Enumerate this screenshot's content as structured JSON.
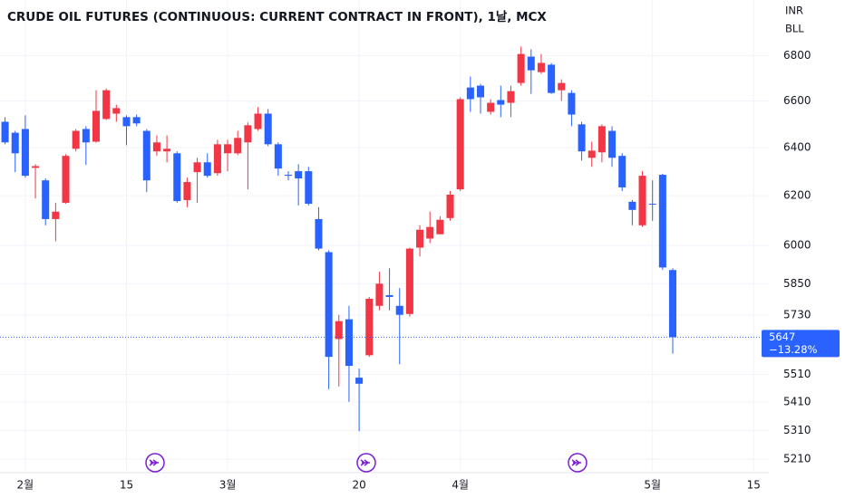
{
  "chart_data": {
    "type": "candlestick",
    "title": "CRUDE OIL FUTURES (CONTINUOUS: CURRENT CONTRACT IN FRONT), 1날, MCX",
    "currency": "INR",
    "unit": "BLL",
    "up_color": "#f23645",
    "down_color": "#2962ff",
    "log_scale": true,
    "grid": true,
    "categories": [
      null,
      null,
      "2월",
      null,
      null,
      null,
      null,
      null,
      null,
      null,
      null,
      null,
      "15",
      null,
      null,
      null,
      null,
      null,
      null,
      null,
      null,
      null,
      "3월",
      null,
      null,
      null,
      null,
      null,
      null,
      null,
      null,
      null,
      null,
      null,
      null,
      "20",
      null,
      null,
      null,
      null,
      null,
      null,
      null,
      null,
      null,
      "4월",
      null,
      null,
      null,
      null,
      null,
      null,
      null,
      null,
      null,
      null,
      null,
      null,
      null,
      null,
      null,
      null,
      null,
      null,
      "5월",
      null,
      null,
      null,
      null,
      null,
      null,
      null,
      null,
      null,
      "15",
      null
    ],
    "open": [
      6510,
      6463,
      6479,
      6315,
      6263,
      6105,
      6171,
      6395,
      6479,
      6425,
      6522,
      6545,
      6530,
      6530,
      6471,
      6384,
      6384,
      6376,
      6182,
      6297,
      6338,
      6293,
      6376,
      6376,
      6422,
      6479,
      6545,
      6414,
      6286,
      6301,
      6301,
      6105,
      5973,
      5640,
      5714,
      5498,
      5580,
      5765,
      5806,
      5765,
      5734,
      5991,
      6027,
      6044,
      6109,
      6226,
      6659,
      6667,
      6553,
      6604,
      6592,
      6679,
      6796,
      6727,
      6760,
      6647,
      6635,
      6499,
      6357,
      6380,
      6471,
      6365,
      6175,
      6080,
      6167,
      6286,
      5903,
      null,
      null,
      null,
      null,
      null,
      null,
      null,
      null,
      null
    ],
    "high": [
      6530,
      6471,
      6538,
      6330,
      6271,
      6171,
      6372,
      6479,
      6491,
      6647,
      6655,
      6584,
      6538,
      6541,
      6479,
      6452,
      6452,
      6384,
      6274,
      6357,
      6376,
      6433,
      6433,
      6471,
      6507,
      6573,
      6565,
      6422,
      6301,
      6330,
      6319,
      6153,
      5980,
      5731,
      5765,
      5531,
      5799,
      5896,
      5910,
      5833,
      5991,
      6080,
      6135,
      6116,
      6219,
      6616,
      6707,
      6675,
      6608,
      6667,
      6667,
      6841,
      6829,
      6808,
      6768,
      6695,
      6647,
      6510,
      6425,
      6499,
      6491,
      6376,
      6182,
      6301,
      6263,
      6290,
      5910,
      null,
      null,
      null,
      null,
      null,
      null,
      null,
      null,
      null
    ],
    "low": [
      6414,
      6297,
      6274,
      6189,
      6080,
      6016,
      6167,
      6384,
      6327,
      6421,
      6518,
      6510,
      6410,
      6491,
      6215,
      6365,
      6338,
      6171,
      6153,
      6171,
      6274,
      6282,
      6301,
      6368,
      6226,
      6471,
      6406,
      6282,
      6263,
      6160,
      6160,
      5980,
      5456,
      5466,
      5411,
      5307,
      5574,
      5748,
      5748,
      5547,
      5724,
      5956,
      6009,
      6044,
      6098,
      6219,
      6553,
      6545,
      6541,
      6530,
      6530,
      6667,
      6631,
      6719,
      6631,
      6600,
      6491,
      6345,
      6319,
      6338,
      6319,
      6219,
      6080,
      6073,
      6098,
      5903,
      5586,
      null,
      null,
      null,
      null,
      null,
      null,
      null,
      null,
      null
    ],
    "close": [
      6422,
      6376,
      6282,
      6322,
      6105,
      6135,
      6365,
      6471,
      6422,
      6557,
      6647,
      6569,
      6491,
      6503,
      6263,
      6422,
      6395,
      6178,
      6256,
      6338,
      6282,
      6414,
      6414,
      6441,
      6495,
      6545,
      6414,
      6312,
      6282,
      6271,
      6167,
      5987,
      5574,
      5707,
      5541,
      5476,
      5792,
      5850,
      5799,
      5731,
      5987,
      6062,
      6073,
      6102,
      6204,
      6608,
      6608,
      6616,
      6592,
      6584,
      6643,
      6808,
      6735,
      6768,
      6635,
      6679,
      6541,
      6384,
      6387,
      6491,
      6357,
      6234,
      6142,
      6282,
      6164,
      5913,
      5647,
      null,
      null,
      null,
      null,
      null,
      null,
      null,
      null,
      null
    ],
    "ylim": [
      5170,
      7055
    ],
    "yticks": [
      5210,
      5310,
      5410,
      5510,
      5730,
      5850,
      6000,
      6200,
      6400,
      6600,
      6800
    ],
    "last_price": 5647,
    "change_label": "−13.28%"
  }
}
